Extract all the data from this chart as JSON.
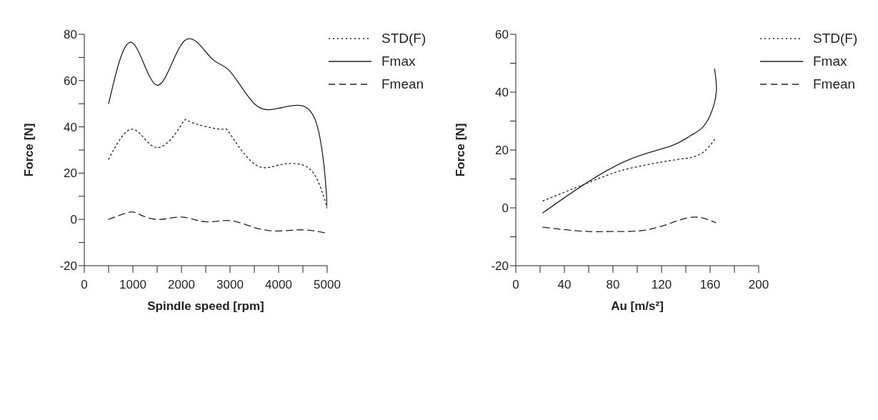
{
  "chart_data": [
    {
      "type": "line",
      "xlabel": "Spindle speed [rpm]",
      "ylabel": "Force [N]",
      "xlim": [
        0,
        5000
      ],
      "ylim": [
        -20,
        80
      ],
      "xticks": [
        0,
        {
          "value": 500,
          "label": null
        },
        1000,
        {
          "value": 1500,
          "label": null
        },
        2000,
        {
          "value": 2500,
          "label": null
        },
        3000,
        {
          "value": 3500,
          "label": null
        },
        4000,
        {
          "value": 4500,
          "label": null
        },
        5000
      ],
      "yticks": [
        -20,
        {
          "value": -10,
          "label": null
        },
        0,
        {
          "value": 10,
          "label": null
        },
        20,
        {
          "value": 30,
          "label": null
        },
        40,
        {
          "value": 50,
          "label": null
        },
        60,
        {
          "value": 70,
          "label": null
        },
        80
      ],
      "legend": "top right",
      "grid": false,
      "marker": "none",
      "series": [
        {
          "name": "STD(F)",
          "color": "#222222",
          "line_style": "dotted",
          "x": [
            500,
            1000,
            1500,
            2000,
            2200,
            2800,
            3000,
            3500,
            4000,
            4500,
            4800,
            5000
          ],
          "values": [
            26,
            39,
            31,
            41,
            42,
            39,
            37,
            24,
            23.5,
            23.5,
            17,
            5
          ]
        },
        {
          "name": "Fmax",
          "color": "#222222",
          "line_style": "solid",
          "x": [
            500,
            975,
            1500,
            2050,
            2600,
            3000,
            3500,
            4000,
            4500,
            4800,
            4950,
            5000
          ],
          "values": [
            50,
            76.5,
            58,
            77,
            70,
            64,
            50,
            48,
            49,
            40,
            20,
            5
          ]
        },
        {
          "name": "Fmean",
          "color": "#222222",
          "line_style": "dashed",
          "x": [
            500,
            900,
            1100,
            1500,
            2000,
            2500,
            3000,
            3500,
            4000,
            4500,
            5000
          ],
          "values": [
            0,
            3,
            2.5,
            0,
            1,
            -1,
            -0.5,
            -3.5,
            -5,
            -4.5,
            -6
          ]
        }
      ]
    },
    {
      "type": "line",
      "xlabel": "Au [m/s²]",
      "ylabel": "Force [N]",
      "xlim": [
        0,
        200
      ],
      "ylim": [
        -20,
        60
      ],
      "xticks": [
        0,
        {
          "value": 20,
          "label": null
        },
        40,
        {
          "value": 60,
          "label": null
        },
        80,
        {
          "value": 100,
          "label": null
        },
        120,
        {
          "value": 140,
          "label": null
        },
        160,
        {
          "value": 180,
          "label": null
        },
        200
      ],
      "yticks": [
        -20,
        {
          "value": -10,
          "label": null
        },
        0,
        {
          "value": 10,
          "label": null
        },
        20,
        {
          "value": 30,
          "label": null
        },
        40,
        {
          "value": 50,
          "label": null
        },
        60
      ],
      "legend": "top right",
      "grid": false,
      "marker": "none",
      "series": [
        {
          "name": "STD(F)",
          "color": "#222222",
          "line_style": "dotted",
          "x": [
            22.3,
            66.8,
            93.4,
            127.8,
            143.3,
            154.2,
            163.7
          ],
          "values": [
            2.4,
            9.9,
            13.6,
            16.4,
            17.3,
            19.2,
            23.6
          ]
        },
        {
          "name": "Fmax",
          "color": "#222222",
          "line_style": "solid",
          "x": [
            22.3,
            55.9,
            93.4,
            127.8,
            143.3,
            154.2,
            162.1,
            165.2,
            163.7
          ],
          "values": [
            -1.7,
            8,
            16.7,
            21.4,
            24.8,
            28,
            34.2,
            41.1,
            48
          ]
        },
        {
          "name": "Fmean",
          "color": "#222222",
          "line_style": "dashed",
          "x": [
            22.3,
            55.9,
            77.8,
            102.8,
            124.6,
            146.5,
            164.5
          ],
          "values": [
            -6.7,
            -8.1,
            -8.2,
            -7.9,
            -5.7,
            -3.2,
            -5.1
          ]
        }
      ]
    }
  ]
}
